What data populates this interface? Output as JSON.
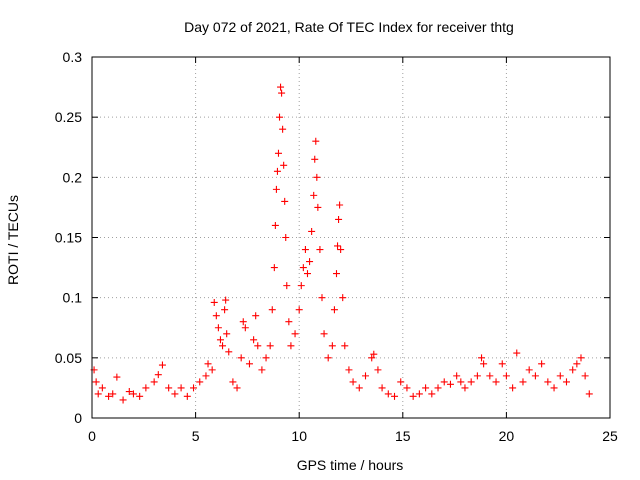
{
  "chart_data": {
    "type": "scatter",
    "title": "Day 072 of 2021, Rate Of TEC Index for receiver thtg",
    "xlabel": "GPS time / hours",
    "ylabel": "ROTI / TECUs",
    "xlim": [
      0,
      25
    ],
    "ylim": [
      0,
      0.3
    ],
    "xticks": [
      "0",
      "5",
      "10",
      "15",
      "20",
      "25"
    ],
    "yticks": [
      "0",
      "0.05",
      "0.1",
      "0.15",
      "0.2",
      "0.25",
      "0.3"
    ],
    "grid": true,
    "marker": "plus",
    "color": "#ff0000",
    "series": [
      {
        "points": [
          [
            0.1,
            0.04
          ],
          [
            0.2,
            0.03
          ],
          [
            0.3,
            0.02
          ],
          [
            0.5,
            0.025
          ],
          [
            0.8,
            0.018
          ],
          [
            1.0,
            0.02
          ],
          [
            1.2,
            0.034
          ],
          [
            1.5,
            0.015
          ],
          [
            1.8,
            0.022
          ],
          [
            2.0,
            0.02
          ],
          [
            2.3,
            0.018
          ],
          [
            2.6,
            0.025
          ],
          [
            3.0,
            0.03
          ],
          [
            3.2,
            0.036
          ],
          [
            3.4,
            0.044
          ],
          [
            3.7,
            0.025
          ],
          [
            4.0,
            0.02
          ],
          [
            4.3,
            0.025
          ],
          [
            4.6,
            0.018
          ],
          [
            4.9,
            0.025
          ],
          [
            5.2,
            0.03
          ],
          [
            5.5,
            0.035
          ],
          [
            5.6,
            0.045
          ],
          [
            5.8,
            0.04
          ],
          [
            5.9,
            0.096
          ],
          [
            6.0,
            0.085
          ],
          [
            6.1,
            0.075
          ],
          [
            6.2,
            0.065
          ],
          [
            6.3,
            0.06
          ],
          [
            6.4,
            0.09
          ],
          [
            6.45,
            0.098
          ],
          [
            6.5,
            0.07
          ],
          [
            6.6,
            0.055
          ],
          [
            6.8,
            0.03
          ],
          [
            7.0,
            0.025
          ],
          [
            7.2,
            0.05
          ],
          [
            7.3,
            0.08
          ],
          [
            7.4,
            0.075
          ],
          [
            7.6,
            0.045
          ],
          [
            7.8,
            0.065
          ],
          [
            7.9,
            0.085
          ],
          [
            8.0,
            0.06
          ],
          [
            8.2,
            0.04
          ],
          [
            8.4,
            0.05
          ],
          [
            8.6,
            0.06
          ],
          [
            8.7,
            0.09
          ],
          [
            8.8,
            0.125
          ],
          [
            8.85,
            0.16
          ],
          [
            8.9,
            0.19
          ],
          [
            8.95,
            0.205
          ],
          [
            9.0,
            0.22
          ],
          [
            9.05,
            0.25
          ],
          [
            9.1,
            0.275
          ],
          [
            9.15,
            0.27
          ],
          [
            9.2,
            0.24
          ],
          [
            9.25,
            0.21
          ],
          [
            9.3,
            0.18
          ],
          [
            9.35,
            0.15
          ],
          [
            9.4,
            0.11
          ],
          [
            9.5,
            0.08
          ],
          [
            9.6,
            0.06
          ],
          [
            9.8,
            0.07
          ],
          [
            10.0,
            0.09
          ],
          [
            10.1,
            0.11
          ],
          [
            10.2,
            0.125
          ],
          [
            10.3,
            0.14
          ],
          [
            10.4,
            0.12
          ],
          [
            10.5,
            0.13
          ],
          [
            10.6,
            0.155
          ],
          [
            10.7,
            0.185
          ],
          [
            10.75,
            0.215
          ],
          [
            10.8,
            0.23
          ],
          [
            10.85,
            0.2
          ],
          [
            10.9,
            0.175
          ],
          [
            11.0,
            0.14
          ],
          [
            11.1,
            0.1
          ],
          [
            11.2,
            0.07
          ],
          [
            11.4,
            0.05
          ],
          [
            11.6,
            0.06
          ],
          [
            11.7,
            0.09
          ],
          [
            11.8,
            0.12
          ],
          [
            11.85,
            0.143
          ],
          [
            11.9,
            0.165
          ],
          [
            11.95,
            0.177
          ],
          [
            12.0,
            0.14
          ],
          [
            12.1,
            0.1
          ],
          [
            12.2,
            0.06
          ],
          [
            12.4,
            0.04
          ],
          [
            12.6,
            0.03
          ],
          [
            12.9,
            0.025
          ],
          [
            13.2,
            0.035
          ],
          [
            13.5,
            0.05
          ],
          [
            13.6,
            0.053
          ],
          [
            13.8,
            0.04
          ],
          [
            14.0,
            0.025
          ],
          [
            14.3,
            0.02
          ],
          [
            14.6,
            0.018
          ],
          [
            14.9,
            0.03
          ],
          [
            15.2,
            0.025
          ],
          [
            15.5,
            0.018
          ],
          [
            15.8,
            0.02
          ],
          [
            16.1,
            0.025
          ],
          [
            16.4,
            0.02
          ],
          [
            16.7,
            0.025
          ],
          [
            17.0,
            0.03
          ],
          [
            17.3,
            0.028
          ],
          [
            17.6,
            0.035
          ],
          [
            17.8,
            0.03
          ],
          [
            18.0,
            0.025
          ],
          [
            18.3,
            0.03
          ],
          [
            18.6,
            0.035
          ],
          [
            18.8,
            0.05
          ],
          [
            18.9,
            0.045
          ],
          [
            19.2,
            0.035
          ],
          [
            19.5,
            0.03
          ],
          [
            19.8,
            0.045
          ],
          [
            20.0,
            0.035
          ],
          [
            20.3,
            0.025
          ],
          [
            20.5,
            0.054
          ],
          [
            20.8,
            0.03
          ],
          [
            21.1,
            0.04
          ],
          [
            21.4,
            0.035
          ],
          [
            21.7,
            0.045
          ],
          [
            22.0,
            0.03
          ],
          [
            22.3,
            0.025
          ],
          [
            22.6,
            0.035
          ],
          [
            22.9,
            0.03
          ],
          [
            23.2,
            0.04
          ],
          [
            23.4,
            0.045
          ],
          [
            23.6,
            0.05
          ],
          [
            23.8,
            0.035
          ],
          [
            24.0,
            0.02
          ]
        ]
      }
    ]
  }
}
